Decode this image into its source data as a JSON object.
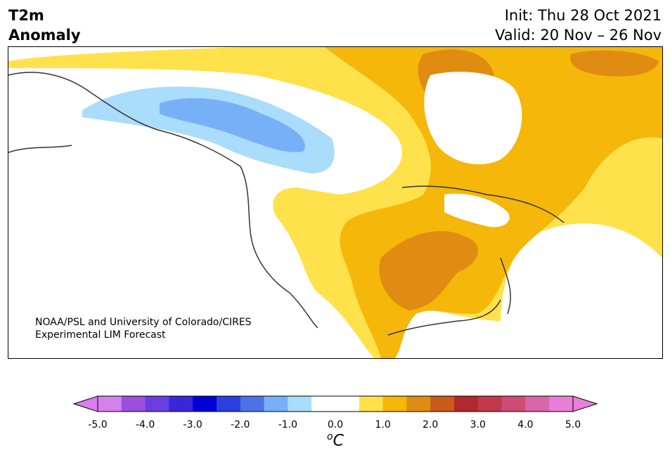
{
  "title": {
    "line1": "T2m",
    "line2": "Anomaly"
  },
  "init": "Init: Thu 28 Oct 2021",
  "valid": "Valid: 20 Nov – 26 Nov",
  "credit": {
    "line1": "NOAA/PSL and University of Colorado/CIRES",
    "line2": "Experimental LIM Forecast"
  },
  "colorbar": {
    "unit_base": "C",
    "unit_sup": "o",
    "ticks": [
      "-5.0",
      "-4.0",
      "-3.0",
      "-2.0",
      "-1.0",
      "0.0",
      "1.0",
      "2.0",
      "3.0",
      "4.0",
      "5.0"
    ],
    "min_extend_color": "#d87ef0",
    "max_extend_color": "#e87fd8",
    "colors": [
      "#d580ec",
      "#9a4fdf",
      "#6a3ee0",
      "#3a26d9",
      "#0000d6",
      "#2a3fe0",
      "#4c72e8",
      "#78b0f7",
      "#aadcfb",
      "#ffffff",
      "#ffffff",
      "#ffe14b",
      "#f4b70a",
      "#e08c12",
      "#c85a1a",
      "#b0292b",
      "#c2394c",
      "#cf4c76",
      "#d966a8",
      "#e87fd8"
    ]
  },
  "map_colors": {
    "cool_light": "#aadcfb",
    "cool_mid": "#78b0f7",
    "warm_light": "#ffe14b",
    "warm_mid": "#f4b70a",
    "warm_dark": "#e08c12",
    "land_line": "#333333"
  }
}
